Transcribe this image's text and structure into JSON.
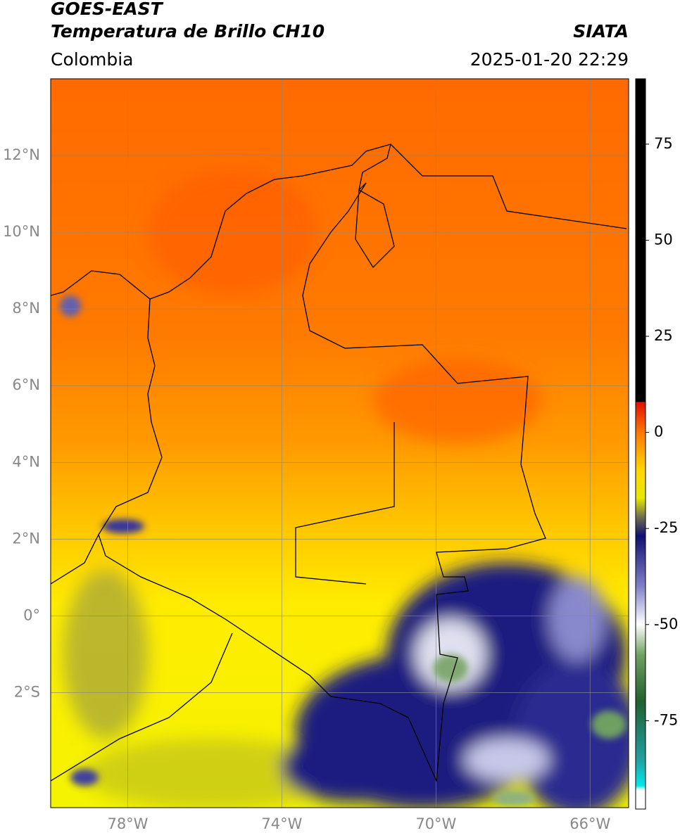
{
  "header": {
    "satellite": "GOES-EAST",
    "product": "Temperatura de Brillo CH10",
    "region": "Colombia",
    "source": "SIATA",
    "datetime": "2025-01-20 22:29"
  },
  "map": {
    "xlim": [
      -80,
      -65
    ],
    "ylim": [
      -5,
      14
    ],
    "xticks": [
      {
        "value": -78,
        "label": "78°W"
      },
      {
        "value": -74,
        "label": "74°W"
      },
      {
        "value": -70,
        "label": "70°W"
      },
      {
        "value": -66,
        "label": "66°W"
      }
    ],
    "yticks": [
      {
        "value": 12,
        "label": "12°N"
      },
      {
        "value": 10,
        "label": "10°N"
      },
      {
        "value": 8,
        "label": "8°N"
      },
      {
        "value": 6,
        "label": "6°N"
      },
      {
        "value": 4,
        "label": "4°N"
      },
      {
        "value": 2,
        "label": "2°N"
      },
      {
        "value": 0,
        "label": "0°"
      },
      {
        "value": -2,
        "label": "2°S"
      }
    ],
    "grid": true
  },
  "colorbar": {
    "ylim": [
      -98,
      92
    ],
    "yticks": [
      75,
      50,
      25,
      0,
      -25,
      -50,
      -75
    ]
  }
}
